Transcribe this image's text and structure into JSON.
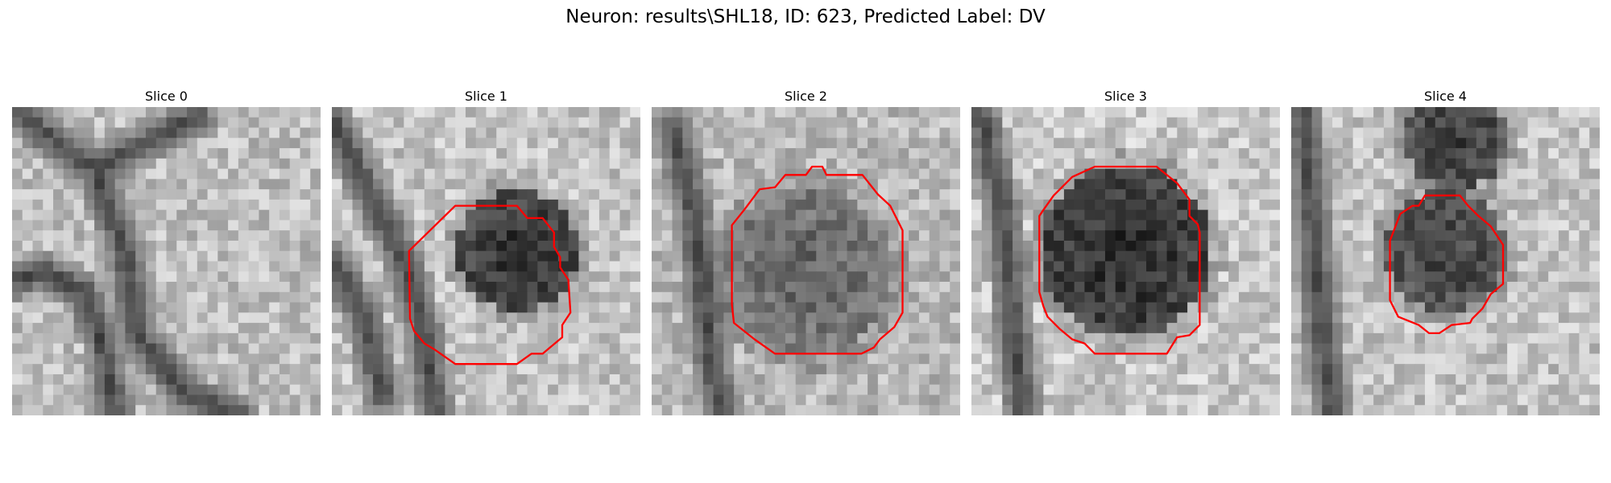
{
  "figure": {
    "title": "Neuron: results\\SHL18, ID: 623, Predicted Label: DV",
    "contour_color": "#ff0000"
  },
  "slices": [
    {
      "title": "Slice 0",
      "has_contour": false
    },
    {
      "title": "Slice 1",
      "has_contour": true
    },
    {
      "title": "Slice 2",
      "has_contour": true
    },
    {
      "title": "Slice 3",
      "has_contour": true
    },
    {
      "title": "Slice 4",
      "has_contour": true
    }
  ]
}
